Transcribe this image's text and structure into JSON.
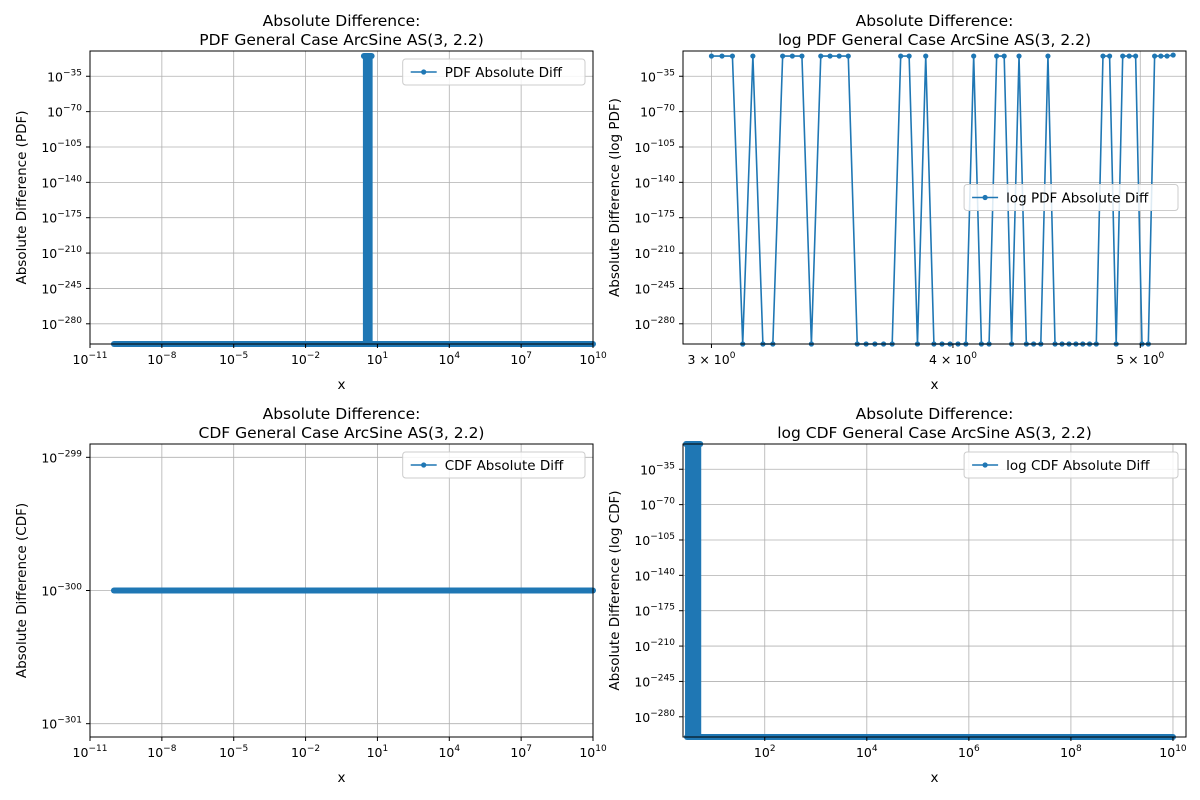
{
  "chart_data": [
    {
      "id": "pdf",
      "type": "line",
      "title": [
        "Absolute Difference:",
        "PDF General Case ArcSine AS(3, 2.2)"
      ],
      "xlabel": "x",
      "ylabel": "Absolute Difference (PDF)",
      "xscale": "log",
      "yscale": "log",
      "xlim": [
        1e-11,
        10000000000.0
      ],
      "ylim_log10": [
        -300,
        -10
      ],
      "xticks": [
        {
          "value": 1e-11,
          "base": "10",
          "exp": "−11"
        },
        {
          "value": 1e-08,
          "base": "10",
          "exp": "−8"
        },
        {
          "value": 1e-05,
          "base": "10",
          "exp": "−5"
        },
        {
          "value": 0.01,
          "base": "10",
          "exp": "−2"
        },
        {
          "value": 10.0,
          "base": "10",
          "exp": "1"
        },
        {
          "value": 10000.0,
          "base": "10",
          "exp": "4"
        },
        {
          "value": 10000000.0,
          "base": "10",
          "exp": "7"
        },
        {
          "value": 10000000000.0,
          "base": "10",
          "exp": "10"
        }
      ],
      "yticks": [
        {
          "log10": -35,
          "base": "10",
          "exp": "−35"
        },
        {
          "log10": -70,
          "base": "10",
          "exp": "−70"
        },
        {
          "log10": -105,
          "base": "10",
          "exp": "−105"
        },
        {
          "log10": -140,
          "base": "10",
          "exp": "−140"
        },
        {
          "log10": -175,
          "base": "10",
          "exp": "−175"
        },
        {
          "log10": -210,
          "base": "10",
          "exp": "−210"
        },
        {
          "log10": -245,
          "base": "10",
          "exp": "−245"
        },
        {
          "log10": -280,
          "base": "10",
          "exp": "−280"
        }
      ],
      "grid": true,
      "legend_position": "upper right",
      "series": [
        {
          "name": "PDF Absolute Diff",
          "color": "#1f77b4",
          "pattern": "dense_floor_with_spike",
          "x_range": [
            1e-10,
            10000000000.0
          ],
          "floor_log10": -300,
          "spike_x_range": [
            3,
            5.2
          ],
          "spike_top_log10": -15
        }
      ]
    },
    {
      "id": "logpdf",
      "type": "line",
      "title": [
        "Absolute Difference:",
        "log PDF General Case ArcSine AS(3, 2.2)"
      ],
      "xlabel": "x",
      "ylabel": "Absolute Difference (log PDF)",
      "xscale": "log",
      "yscale": "log",
      "xlim": [
        2.9,
        5.28
      ],
      "ylim_log10": [
        -300,
        -10
      ],
      "xticks": [
        {
          "value": 3,
          "base": "3 × 10",
          "exp": "0"
        },
        {
          "value": 4,
          "base": "4 × 10",
          "exp": "0"
        },
        {
          "value": 5,
          "base": "5 × 10",
          "exp": "0"
        }
      ],
      "yticks": [
        {
          "log10": -35,
          "base": "10",
          "exp": "−35"
        },
        {
          "log10": -70,
          "base": "10",
          "exp": "−70"
        },
        {
          "log10": -105,
          "base": "10",
          "exp": "−105"
        },
        {
          "log10": -140,
          "base": "10",
          "exp": "−140"
        },
        {
          "log10": -175,
          "base": "10",
          "exp": "−175"
        },
        {
          "log10": -210,
          "base": "10",
          "exp": "−210"
        },
        {
          "log10": -245,
          "base": "10",
          "exp": "−245"
        },
        {
          "log10": -280,
          "base": "10",
          "exp": "−280"
        }
      ],
      "grid": true,
      "legend_position": "center right",
      "series": [
        {
          "name": "log PDF Absolute Diff",
          "color": "#1f77b4",
          "pattern": "points",
          "x_start": 3.0,
          "x_end": 5.2,
          "y_log10": [
            -15,
            -15,
            -15,
            -300,
            -15,
            -300,
            -300,
            -15,
            -15,
            -15,
            -300,
            -15,
            -15,
            -15,
            -15,
            -300,
            -300,
            -300,
            -300,
            -300,
            -15,
            -15,
            -300,
            -15,
            -300,
            -300,
            -300,
            -300,
            -300,
            -15,
            -300,
            -300,
            -15,
            -15,
            -300,
            -15,
            -300,
            -300,
            -300,
            -15,
            -300,
            -300,
            -300,
            -300,
            -300,
            -300,
            -300,
            -15,
            -15,
            -300,
            -15,
            -15,
            -15,
            -300,
            -300,
            -15,
            -15,
            -15,
            -14
          ]
        }
      ]
    },
    {
      "id": "cdf",
      "type": "line",
      "title": [
        "Absolute Difference:",
        "CDF General Case ArcSine AS(3, 2.2)"
      ],
      "xlabel": "x",
      "ylabel": "Absolute Difference (CDF)",
      "xscale": "log",
      "yscale": "log",
      "xlim": [
        1e-11,
        10000000000.0
      ],
      "ylim_log10": [
        -301.1,
        -298.9
      ],
      "xticks": [
        {
          "value": 1e-11,
          "base": "10",
          "exp": "−11"
        },
        {
          "value": 1e-08,
          "base": "10",
          "exp": "−8"
        },
        {
          "value": 1e-05,
          "base": "10",
          "exp": "−5"
        },
        {
          "value": 0.01,
          "base": "10",
          "exp": "−2"
        },
        {
          "value": 10.0,
          "base": "10",
          "exp": "1"
        },
        {
          "value": 10000.0,
          "base": "10",
          "exp": "4"
        },
        {
          "value": 10000000.0,
          "base": "10",
          "exp": "7"
        },
        {
          "value": 10000000000.0,
          "base": "10",
          "exp": "10"
        }
      ],
      "yticks": [
        {
          "log10": -299,
          "base": "10",
          "exp": "−299"
        },
        {
          "log10": -300,
          "base": "10",
          "exp": "−300"
        },
        {
          "log10": -301,
          "base": "10",
          "exp": "−301"
        }
      ],
      "grid": true,
      "legend_position": "upper right",
      "series": [
        {
          "name": "CDF Absolute Diff",
          "color": "#1f77b4",
          "pattern": "dense_floor",
          "x_range": [
            1e-10,
            10000000000.0
          ],
          "floor_log10": -300
        }
      ]
    },
    {
      "id": "logcdf",
      "type": "line",
      "title": [
        "Absolute Difference:",
        "log CDF General Case ArcSine AS(3, 2.2)"
      ],
      "xlabel": "x",
      "ylabel": "Absolute Difference (log CDF)",
      "xscale": "log",
      "yscale": "log",
      "xlim": [
        2.5,
        18000000000.0
      ],
      "ylim_log10": [
        -300,
        -10
      ],
      "xticks": [
        {
          "value": 100.0,
          "base": "10",
          "exp": "2"
        },
        {
          "value": 10000.0,
          "base": "10",
          "exp": "4"
        },
        {
          "value": 1000000.0,
          "base": "10",
          "exp": "6"
        },
        {
          "value": 100000000.0,
          "base": "10",
          "exp": "8"
        },
        {
          "value": 10000000000.0,
          "base": "10",
          "exp": "10"
        }
      ],
      "yticks": [
        {
          "log10": -35,
          "base": "10",
          "exp": "−35"
        },
        {
          "log10": -70,
          "base": "10",
          "exp": "−70"
        },
        {
          "log10": -105,
          "base": "10",
          "exp": "−105"
        },
        {
          "log10": -140,
          "base": "10",
          "exp": "−140"
        },
        {
          "log10": -175,
          "base": "10",
          "exp": "−175"
        },
        {
          "log10": -210,
          "base": "10",
          "exp": "−210"
        },
        {
          "log10": -245,
          "base": "10",
          "exp": "−245"
        },
        {
          "log10": -280,
          "base": "10",
          "exp": "−280"
        }
      ],
      "grid": true,
      "legend_position": "upper right",
      "series": [
        {
          "name": "log CDF Absolute Diff",
          "color": "#1f77b4",
          "pattern": "dense_floor_with_spike",
          "x_range": [
            3,
            10000000000.0
          ],
          "floor_log10": -300,
          "spike_x_range": [
            3,
            5.2
          ],
          "spike_top_log10": -10
        }
      ]
    }
  ]
}
